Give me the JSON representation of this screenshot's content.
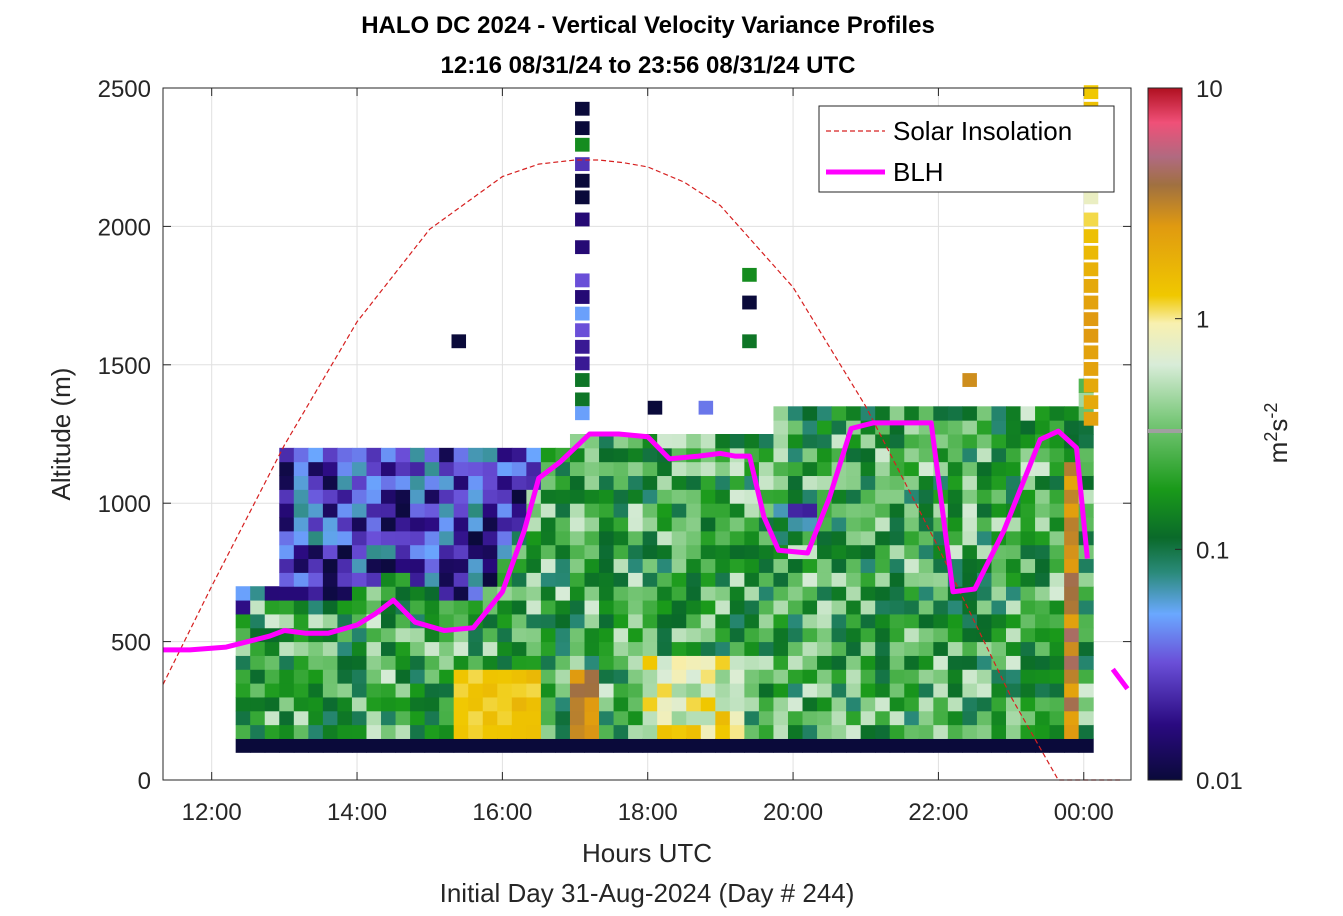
{
  "figure": {
    "title_line1": "HALO DC 2024 - Vertical Velocity Variance Profiles",
    "title_line2": "12:16 08/31/24 to 23:56 08/31/24  UTC",
    "note": "Initial Day 31-Aug-2024 (Day # 244)"
  },
  "colorbar": {
    "label_base": "m",
    "label_sup1": "2",
    "label_mid": "s",
    "label_sup2": "-2",
    "ticks": [
      {
        "label": "10",
        "value": 10
      },
      {
        "label": "1",
        "value": 1
      },
      {
        "label": "0.1",
        "value": 0.1
      },
      {
        "label": "0.01",
        "value": 0.01
      }
    ],
    "scale": "log",
    "range": [
      0.01,
      10
    ]
  },
  "chart_data": {
    "type": "heatmap",
    "xlabel": "Hours UTC",
    "ylabel": "Altitude (m)",
    "xlim": [
      11.33,
      24.65
    ],
    "ylim": [
      0,
      2500
    ],
    "x_ticks": [
      {
        "label": "12:00",
        "value": 12
      },
      {
        "label": "14:00",
        "value": 14
      },
      {
        "label": "16:00",
        "value": 16
      },
      {
        "label": "18:00",
        "value": 18
      },
      {
        "label": "20:00",
        "value": 20
      },
      {
        "label": "22:00",
        "value": 22
      },
      {
        "label": "00:00",
        "value": 24
      }
    ],
    "y_ticks": [
      {
        "label": "0",
        "value": 0
      },
      {
        "label": "500",
        "value": 500
      },
      {
        "label": "1000",
        "value": 1000
      },
      {
        "label": "1500",
        "value": 1500
      },
      {
        "label": "2000",
        "value": 2000
      },
      {
        "label": "2500",
        "value": 2500
      }
    ],
    "grid": true,
    "legend_position": "top-right",
    "series": [
      {
        "name": "Solar Insolation",
        "style": "dashed",
        "color": "#d62020",
        "x": [
          11.33,
          12.0,
          13.0,
          14.0,
          15.0,
          16.0,
          16.5,
          17.0,
          17.33,
          17.67,
          18.0,
          18.5,
          19.0,
          20.0,
          21.0,
          22.0,
          23.0,
          23.65,
          24.0,
          24.5
        ],
        "y": [
          345,
          700,
          1210,
          1655,
          1990,
          2180,
          2225,
          2240,
          2240,
          2230,
          2215,
          2160,
          2075,
          1780,
          1350,
          840,
          300,
          0,
          0,
          0
        ]
      },
      {
        "name": "BLH",
        "style": "solid",
        "color": "#ff00ff",
        "x": [
          11.33,
          11.7,
          12.2,
          12.5,
          12.8,
          13.0,
          13.3,
          13.6,
          14.0,
          14.25,
          14.5,
          14.8,
          15.2,
          15.6,
          16.0,
          16.3,
          16.5,
          16.8,
          17.2,
          17.6,
          18.0,
          18.3,
          18.7,
          19.0,
          19.2,
          19.4,
          19.6,
          19.8,
          20.2,
          20.5,
          20.8,
          21.1,
          21.5,
          21.9,
          22.2,
          22.5,
          22.9,
          23.4,
          23.65,
          23.9,
          24.05
        ],
        "y": [
          470,
          470,
          480,
          500,
          520,
          540,
          530,
          530,
          560,
          600,
          650,
          570,
          540,
          550,
          680,
          900,
          1090,
          1150,
          1250,
          1250,
          1240,
          1160,
          1170,
          1180,
          1170,
          1170,
          950,
          830,
          820,
          1020,
          1270,
          1290,
          1290,
          1290,
          680,
          690,
          900,
          1230,
          1260,
          1200,
          800
        ]
      },
      {
        "name": "",
        "style": "solid",
        "color": "#ff00ff",
        "x": [
          24.4,
          24.6
        ],
        "y": [
          400,
          330
        ]
      }
    ],
    "heatmap_columns": {
      "note": "Per-profile log10 variance values (m^2 s^-2) bottom to top, bin height 50 m starting 100 m; 'null' = no data",
      "bin_start_m": 100,
      "bin_height_m": 50,
      "column_width_h": 0.333,
      "columns": [
        {
          "t": 12.5,
          "top": 700,
          "cells": [
            -2.0,
            -1.2,
            -0.7,
            -1.0,
            -0.4,
            -0.9,
            -1.0,
            -1.1,
            -1.2,
            -1.6,
            -1.9,
            -2.0
          ]
        },
        {
          "t": 12.83,
          "top": 700,
          "cells": [
            -2.0,
            -1.2,
            -1.0,
            -0.8,
            -1.0,
            -1.3,
            -1.2,
            -1.1,
            -1.3,
            -1.6,
            -1.9,
            -2.0
          ]
        },
        {
          "t": 13.17,
          "top": 1200,
          "cells": [
            -2.0,
            -1.4,
            -1.1,
            -1.2,
            -1.1,
            -1.3,
            -1.2,
            -1.1,
            -1.2,
            -1.5,
            -1.3,
            -1.2,
            -1.1,
            -1.6,
            -1.5,
            -1.4,
            -1.7,
            -1.3,
            -1.2,
            -1.0,
            -0.8
          ]
        },
        {
          "t": 13.5,
          "top": 1250,
          "cells": [
            -2.0,
            -0.4,
            -1.0,
            -1.1,
            -1.2,
            -1.1,
            -1.3,
            -1.2,
            -1.3,
            -1.6,
            -1.8,
            -1.9,
            -2.0,
            -1.8,
            -1.6,
            -1.9,
            -2.0,
            -1.5,
            -1.4,
            -1.2,
            -1.7,
            -1.7
          ]
        }
      ]
    }
  }
}
